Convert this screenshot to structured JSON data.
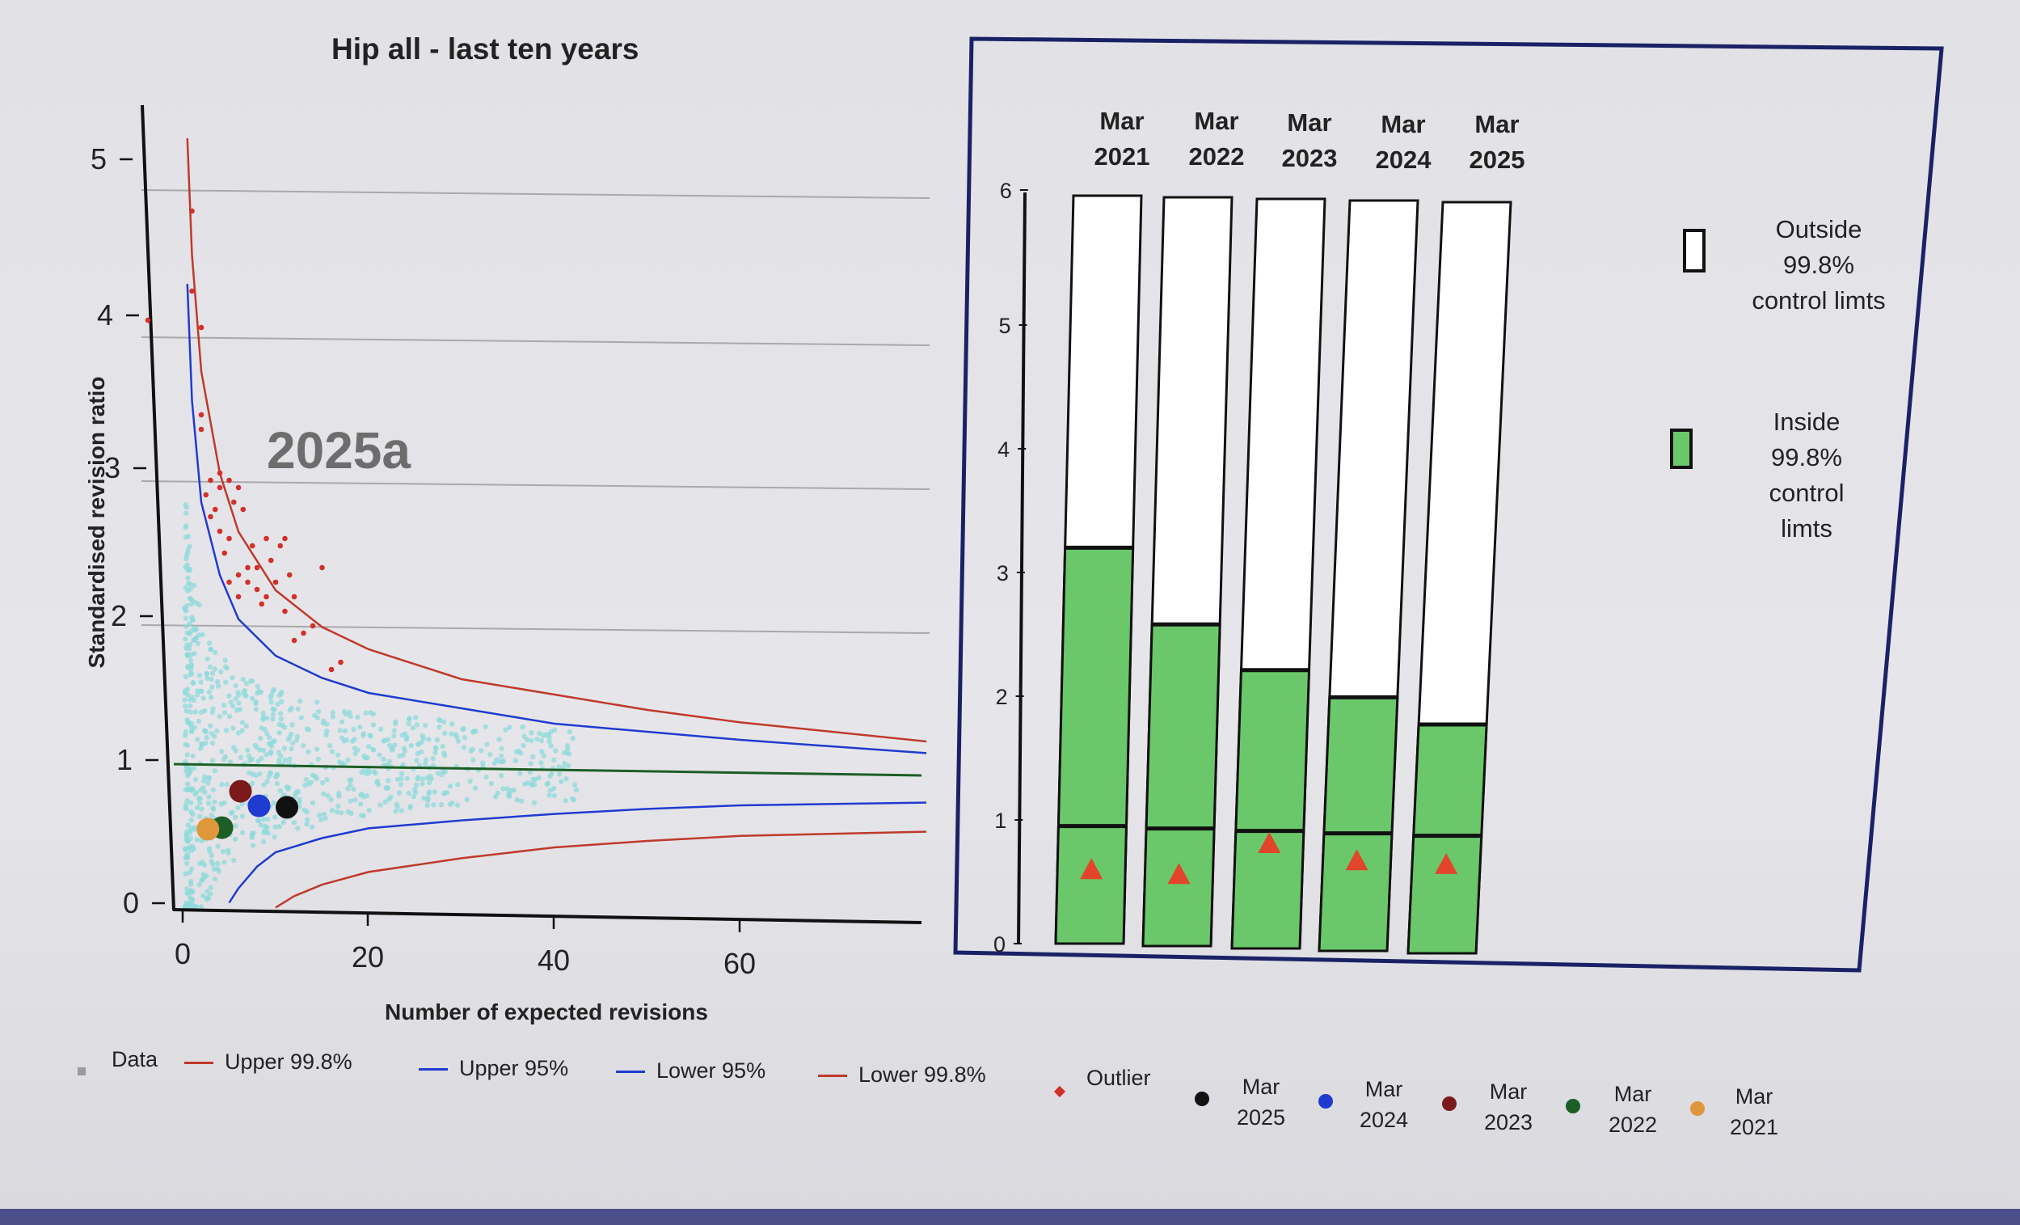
{
  "funnel": {
    "title": "Hip all - last ten years",
    "watermark": "2025a",
    "ylabel": "Standardised revision ratio",
    "xlabel": "Number of expected revisions",
    "yticks": [
      "0",
      "1",
      "2",
      "3",
      "4",
      "5"
    ],
    "xticks": [
      "0",
      "20",
      "40",
      "60"
    ]
  },
  "chart_data": [
    {
      "type": "scatter",
      "title": "Hip all - last ten years",
      "xlabel": "Number of expected revisions",
      "ylabel": "Standardised revision ratio",
      "xlim": [
        0,
        80
      ],
      "ylim": [
        0,
        5.5
      ],
      "reference_line": 1,
      "series": [
        {
          "name": "Mar 2025",
          "x": [
            10
          ],
          "y": [
            0.77
          ],
          "color": "#111111"
        },
        {
          "name": "Mar 2024",
          "x": [
            7
          ],
          "y": [
            0.78
          ],
          "color": "#1f3bd0"
        },
        {
          "name": "Mar 2023",
          "x": [
            5
          ],
          "y": [
            0.88
          ],
          "color": "#7a1a1a"
        },
        {
          "name": "Mar 2022",
          "x": [
            3
          ],
          "y": [
            0.63
          ],
          "color": "#1c5e25"
        },
        {
          "name": "Mar 2021",
          "x": [
            1.5
          ],
          "y": [
            0.62
          ],
          "color": "#e0963a"
        },
        {
          "name": "Outlier",
          "color": "#d2302a",
          "x": [
            -2,
            1,
            1,
            2,
            2,
            2,
            2.5,
            3,
            3,
            3.5,
            4,
            4,
            4,
            4.5,
            5,
            5,
            5,
            5.5,
            6,
            6,
            6,
            6.5,
            7,
            7,
            7.5,
            8,
            8,
            8.5,
            9,
            9,
            9.5,
            10,
            10.5,
            11,
            11,
            11.5,
            12,
            12,
            13,
            14,
            15,
            16,
            17
          ],
          "y": [
            4.05,
            4.8,
            4.25,
            3.3,
            3.4,
            4.0,
            2.85,
            2.95,
            2.7,
            2.75,
            3.0,
            2.6,
            2.9,
            2.45,
            2.95,
            2.55,
            2.25,
            2.8,
            2.9,
            2.3,
            2.15,
            2.75,
            2.35,
            2.25,
            2.5,
            2.2,
            2.35,
            2.1,
            2.55,
            2.15,
            2.4,
            2.25,
            2.5,
            2.05,
            2.55,
            2.3,
            2.15,
            1.85,
            1.9,
            1.95,
            2.35,
            1.65,
            1.7
          ]
        }
      ],
      "control_limits": {
        "upper_998": [
          [
            0.5,
            5.3
          ],
          [
            1,
            4.5
          ],
          [
            2,
            3.7
          ],
          [
            4,
            3.0
          ],
          [
            6,
            2.6
          ],
          [
            10,
            2.2
          ],
          [
            15,
            1.95
          ],
          [
            20,
            1.8
          ],
          [
            30,
            1.6
          ],
          [
            40,
            1.5
          ],
          [
            50,
            1.4
          ],
          [
            60,
            1.32
          ],
          [
            80,
            1.2
          ]
        ],
        "upper_95": [
          [
            0.5,
            4.3
          ],
          [
            1,
            3.5
          ],
          [
            2,
            2.8
          ],
          [
            4,
            2.3
          ],
          [
            6,
            2.0
          ],
          [
            10,
            1.75
          ],
          [
            15,
            1.6
          ],
          [
            20,
            1.5
          ],
          [
            30,
            1.4
          ],
          [
            40,
            1.3
          ],
          [
            50,
            1.25
          ],
          [
            60,
            1.2
          ],
          [
            80,
            1.12
          ]
        ],
        "lower_95": [
          [
            5,
            0.05
          ],
          [
            6,
            0.15
          ],
          [
            8,
            0.3
          ],
          [
            10,
            0.4
          ],
          [
            15,
            0.5
          ],
          [
            20,
            0.57
          ],
          [
            30,
            0.63
          ],
          [
            40,
            0.68
          ],
          [
            50,
            0.72
          ],
          [
            60,
            0.75
          ],
          [
            80,
            0.78
          ]
        ],
        "lower_998": [
          [
            10,
            0.02
          ],
          [
            12,
            0.1
          ],
          [
            15,
            0.18
          ],
          [
            20,
            0.27
          ],
          [
            30,
            0.37
          ],
          [
            40,
            0.45
          ],
          [
            50,
            0.5
          ],
          [
            60,
            0.54
          ],
          [
            80,
            0.58
          ]
        ]
      }
    },
    {
      "type": "bar",
      "categories": [
        "Mar 2021",
        "Mar 2022",
        "Mar 2023",
        "Mar 2024",
        "Mar 2025"
      ],
      "ylim": [
        0,
        6
      ],
      "yticks": [
        "0",
        "1",
        "2",
        "3",
        "4",
        "5",
        "6"
      ],
      "series": [
        {
          "name": "upper_998_limit",
          "values": [
            3.2,
            2.6,
            2.25,
            2.05,
            1.85
          ]
        },
        {
          "name": "lower_998_limit",
          "values": [
            0.95,
            0.95,
            0.95,
            0.95,
            0.95
          ]
        },
        {
          "name": "ratio",
          "values": [
            0.6,
            0.58,
            0.85,
            0.73,
            0.72
          ]
        }
      ]
    }
  ],
  "legend": {
    "data": "Data",
    "upper998": "Upper 99.8%",
    "upper95": "Upper 95%",
    "lower95": "Lower 95%",
    "lower998": "Lower 99.8%",
    "outlier": "Outlier",
    "years": [
      {
        "line1": "Mar",
        "line2": "2025",
        "color": "#111111"
      },
      {
        "line1": "Mar",
        "line2": "2024",
        "color": "#1f3bd0"
      },
      {
        "line1": "Mar",
        "line2": "2023",
        "color": "#7a1a1a"
      },
      {
        "line1": "Mar",
        "line2": "2022",
        "color": "#1c5e25"
      },
      {
        "line1": "Mar",
        "line2": "2021",
        "color": "#e0963a"
      }
    ]
  },
  "bars_panel": {
    "headers": [
      {
        "line1": "Mar",
        "line2": "2021"
      },
      {
        "line1": "Mar",
        "line2": "2022"
      },
      {
        "line1": "Mar",
        "line2": "2023"
      },
      {
        "line1": "Mar",
        "line2": "2024"
      },
      {
        "line1": "Mar",
        "line2": "2025"
      }
    ],
    "key_outside": [
      "Outside",
      "99.8%",
      "control limts"
    ],
    "key_inside": [
      "Inside",
      "99.8%",
      "control",
      "limts"
    ]
  },
  "colors": {
    "green": "#6ac86a",
    "outlier": "#d2302a",
    "upper_line": "#c0392b",
    "blue_line": "#1f3bd0",
    "ref_line": "#1c5e25",
    "cloud": "#8fdada"
  }
}
